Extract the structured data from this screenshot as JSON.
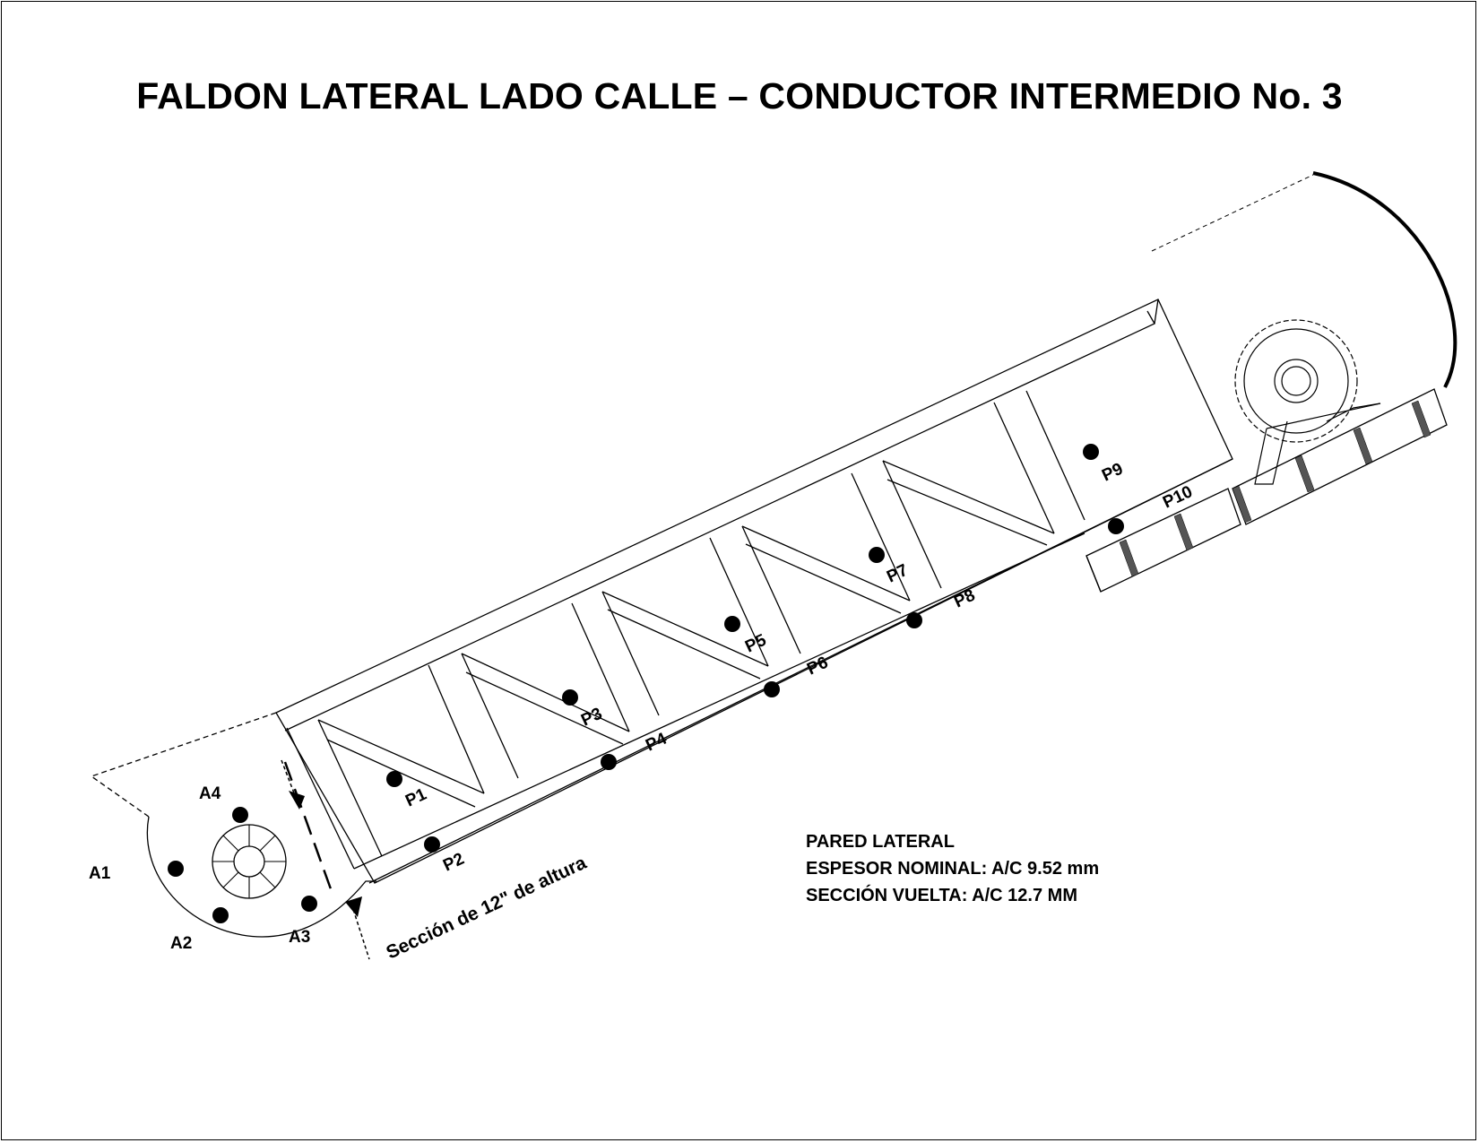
{
  "title": "FALDON LATERAL LADO CALLE – CONDUCTOR INTERMEDIO No. 3",
  "section_label": "Sección de 12\" de altura",
  "notes": [
    "PARED LATERAL",
    "ESPESOR NOMINAL: A/C 9.52 mm",
    "SECCIÓN VUELTA: A/C 12.7 MM"
  ],
  "points": {
    "A1": "A1",
    "A2": "A2",
    "A3": "A3",
    "A4": "A4",
    "P1": "P1",
    "P2": "P2",
    "P3": "P3",
    "P4": "P4",
    "P5": "P5",
    "P6": "P6",
    "P7": "P7",
    "P8": "P8",
    "P9": "P9",
    "P10": "P10"
  },
  "colors": {
    "line": "#000000",
    "background": "#ffffff",
    "slat_fill": "#555555"
  },
  "icons": {
    "sprocket": "sprocket-gear-icon",
    "roller": "tail-roller-icon"
  }
}
